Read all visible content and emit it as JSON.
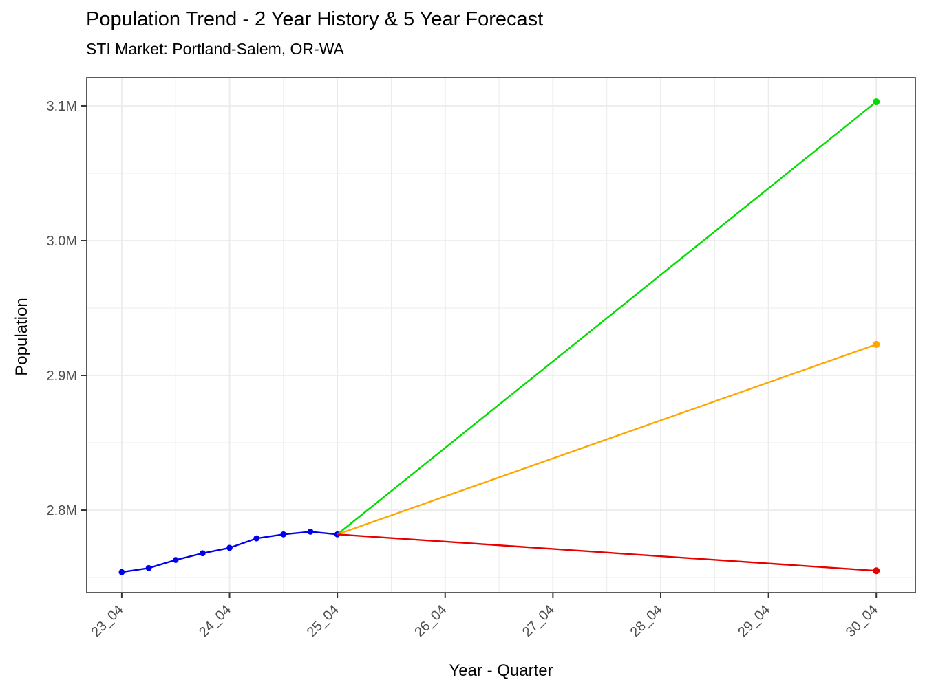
{
  "chart_data": {
    "type": "line",
    "title": "Population Trend - 2 Year History & 5 Year Forecast",
    "subtitle": "STI Market: Portland-Salem, OR-WA",
    "xlabel": "Year - Quarter",
    "ylabel": "Population",
    "units": "millions",
    "grid": true,
    "legend": "none",
    "xlim": [
      -1.3,
      29.45
    ],
    "ylim": [
      2.7388,
      3.1209
    ],
    "x_tick_labels": [
      "23_04",
      "24_04",
      "25_04",
      "26_04",
      "27_04",
      "28_04",
      "29_04",
      "30_04"
    ],
    "x_tick_positions": [
      0,
      4,
      8,
      12,
      16,
      20,
      24,
      28
    ],
    "x_minor_positions": [
      2,
      6,
      10,
      14,
      18,
      22,
      26
    ],
    "y_tick_labels": [
      "2.8M",
      "2.9M",
      "3.0M",
      "3.1M"
    ],
    "y_tick_values": [
      2.8,
      2.9,
      3.0,
      3.1
    ],
    "y_minor_values": [
      2.75,
      2.85,
      2.95,
      3.05
    ],
    "colors": {
      "history": "#0000EE",
      "forecast_high": "#00DC00",
      "forecast_mid": "#FFA500",
      "forecast_low": "#E80000",
      "gridline": "#EBEBEB",
      "panel_border": "#333333",
      "tick": "#333333",
      "tick_label": "#4D4D4D",
      "text": "#000000"
    },
    "series": [
      {
        "name": "history",
        "color_key": "history",
        "quarters": [
          "23_04",
          "24_01",
          "24_02",
          "24_03",
          "24_04",
          "25_01",
          "25_02",
          "25_03",
          "25_04"
        ],
        "x": [
          0,
          1,
          2,
          3,
          4,
          5,
          6,
          7,
          8
        ],
        "values": [
          2.754,
          2.757,
          2.763,
          2.768,
          2.772,
          2.779,
          2.782,
          2.784,
          2.782
        ],
        "markers": "all",
        "point_radius": 4.4
      },
      {
        "name": "forecast-high",
        "color_key": "forecast_high",
        "quarters": [
          "25_04",
          "30_04"
        ],
        "x": [
          8,
          28
        ],
        "values": [
          2.782,
          3.103
        ],
        "markers": "end",
        "point_radius": 5
      },
      {
        "name": "forecast-mid",
        "color_key": "forecast_mid",
        "quarters": [
          "25_04",
          "30_04"
        ],
        "x": [
          8,
          28
        ],
        "values": [
          2.782,
          2.923
        ],
        "markers": "end",
        "point_radius": 5
      },
      {
        "name": "forecast-low",
        "color_key": "forecast_low",
        "quarters": [
          "25_04",
          "30_04"
        ],
        "x": [
          8,
          28
        ],
        "values": [
          2.782,
          2.755
        ],
        "markers": "end",
        "point_radius": 5
      }
    ]
  }
}
